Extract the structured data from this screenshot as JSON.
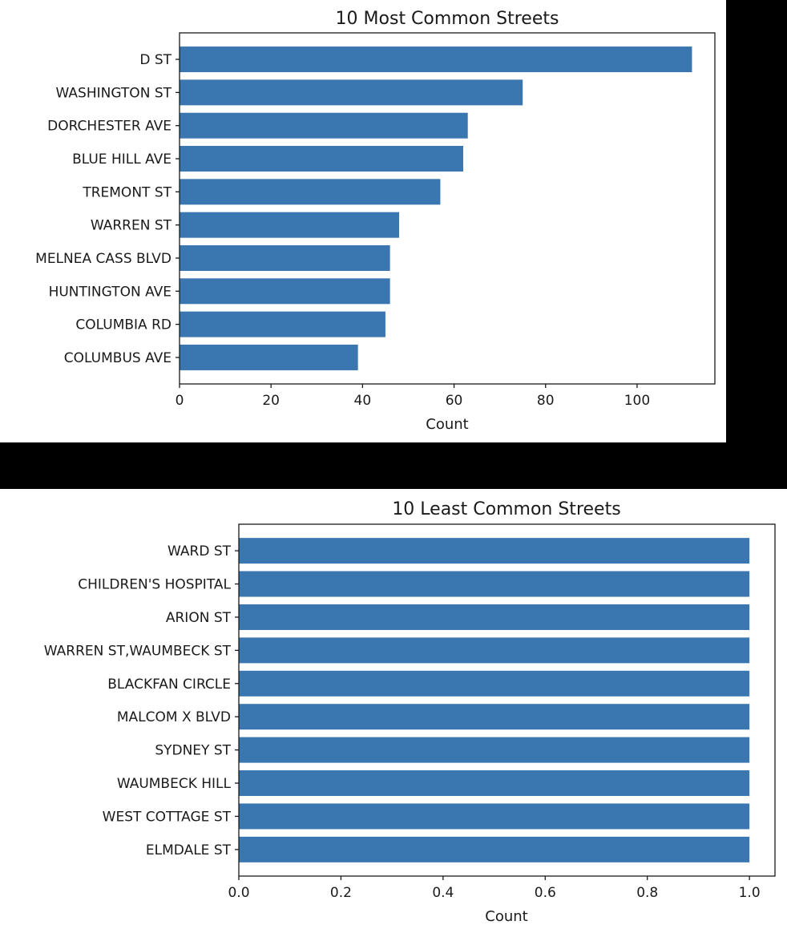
{
  "chart_data": [
    {
      "type": "bar",
      "orientation": "horizontal",
      "title": "10 Most Common Streets",
      "xlabel": "Count",
      "ylabel": "",
      "xlim": [
        0,
        117
      ],
      "xticks": [
        0,
        20,
        40,
        60,
        80,
        100
      ],
      "xtick_labels": [
        "0",
        "20",
        "40",
        "60",
        "80",
        "100"
      ],
      "categories": [
        "D ST",
        "WASHINGTON ST",
        "DORCHESTER AVE",
        "BLUE HILL AVE",
        "TREMONT ST",
        "WARREN ST",
        "MELNEA CASS BLVD",
        "HUNTINGTON AVE",
        "COLUMBIA RD",
        "COLUMBUS AVE"
      ],
      "values": [
        112,
        75,
        63,
        62,
        57,
        48,
        46,
        46,
        45,
        39
      ],
      "bar_color": "#3a76af",
      "grid": false
    },
    {
      "type": "bar",
      "orientation": "horizontal",
      "title": "10 Least Common Streets",
      "xlabel": "Count",
      "ylabel": "",
      "xlim": [
        0,
        1.05
      ],
      "xticks": [
        0.0,
        0.2,
        0.4,
        0.6,
        0.8,
        1.0
      ],
      "xtick_labels": [
        "0.0",
        "0.2",
        "0.4",
        "0.6",
        "0.8",
        "1.0"
      ],
      "categories": [
        "WARD ST",
        "CHILDREN'S HOSPITAL",
        "ARION ST",
        "WARREN ST,WAUMBECK ST",
        "BLACKFAN CIRCLE",
        "MALCOM X BLVD",
        "SYDNEY ST",
        "WAUMBECK HILL",
        "WEST COTTAGE ST",
        "ELMDALE ST"
      ],
      "values": [
        1,
        1,
        1,
        1,
        1,
        1,
        1,
        1,
        1,
        1
      ],
      "bar_color": "#3a76af",
      "grid": false
    }
  ]
}
